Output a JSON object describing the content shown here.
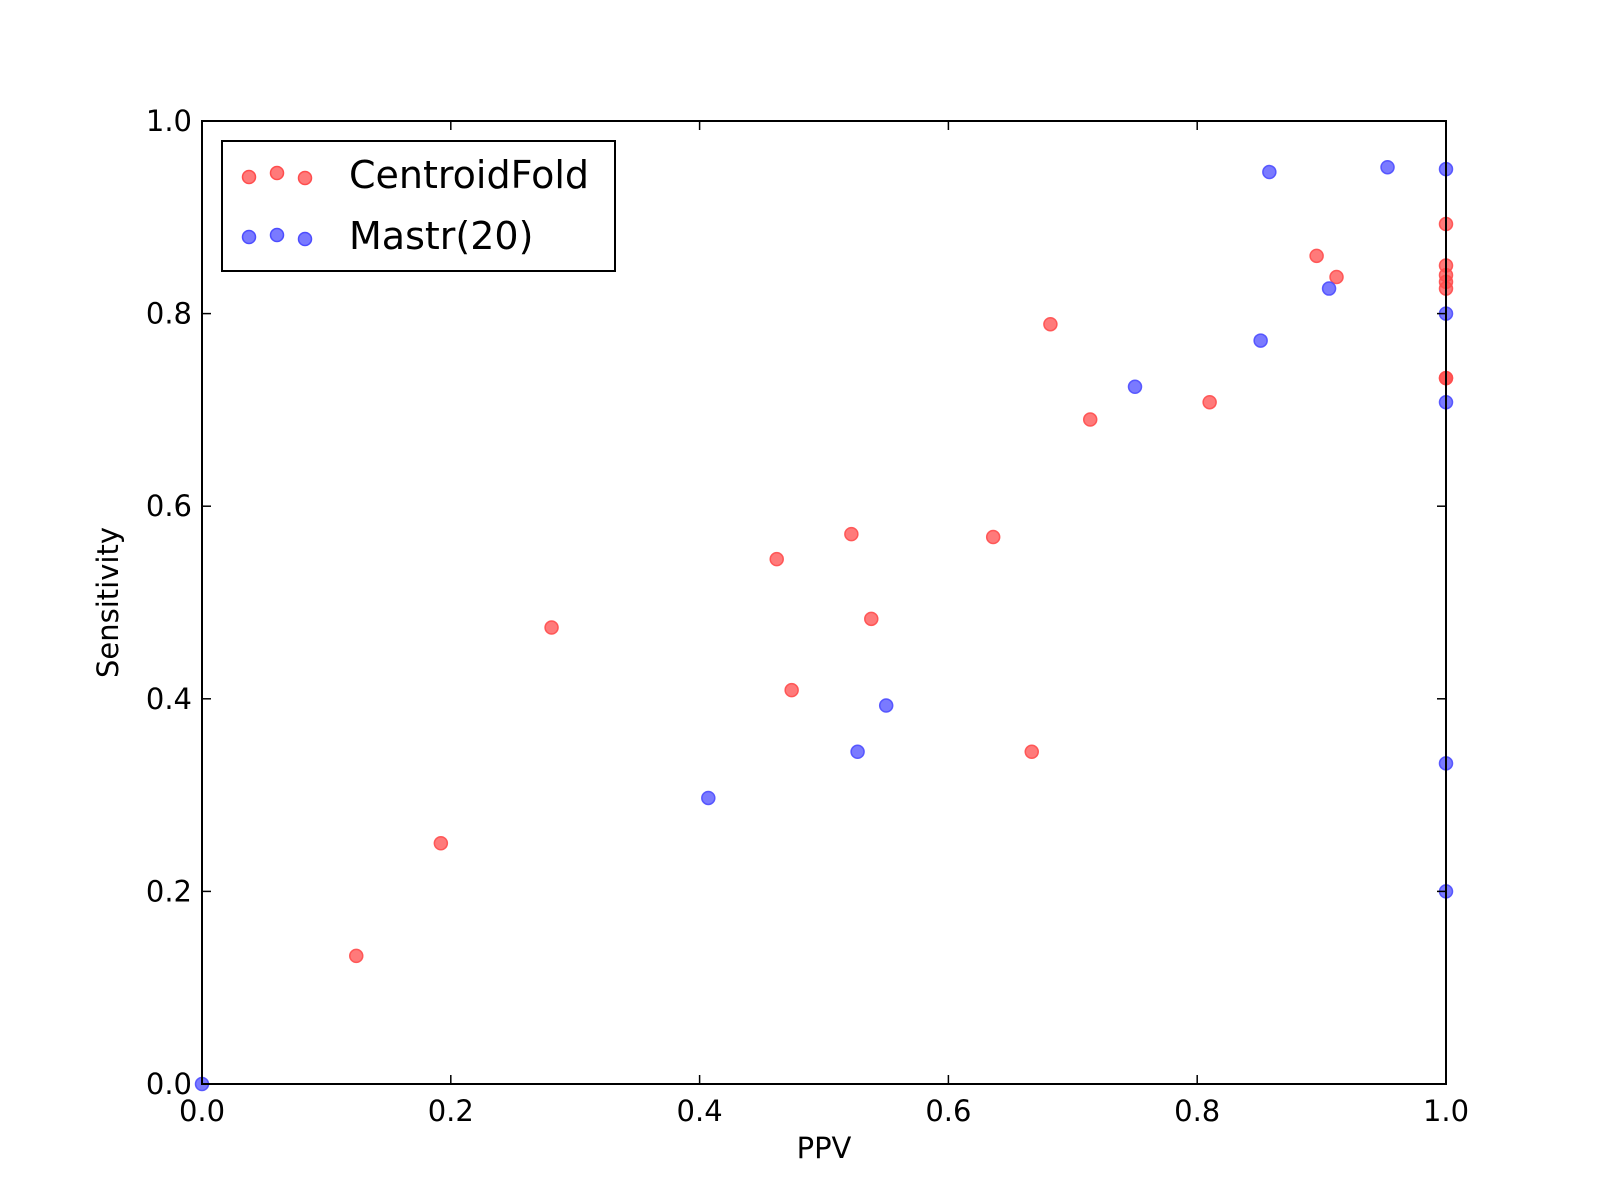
{
  "chart_data": {
    "type": "scatter",
    "title": "",
    "xlabel": "PPV",
    "ylabel": "Sensitivity",
    "xlim": [
      0.0,
      1.0
    ],
    "ylim": [
      0.0,
      1.0
    ],
    "x_ticks": [
      "0.0",
      "0.2",
      "0.4",
      "0.6",
      "0.8",
      "1.0"
    ],
    "y_ticks": [
      "0.0",
      "0.2",
      "0.4",
      "0.6",
      "0.8",
      "1.0"
    ],
    "grid": false,
    "legend_position": "upper-left",
    "series": [
      {
        "name": "CentroidFold",
        "color": "#ff4d4d",
        "points": [
          {
            "x": 0.124,
            "y": 0.133
          },
          {
            "x": 0.192,
            "y": 0.25
          },
          {
            "x": 0.281,
            "y": 0.474
          },
          {
            "x": 0.462,
            "y": 0.545
          },
          {
            "x": 0.474,
            "y": 0.409
          },
          {
            "x": 0.522,
            "y": 0.571
          },
          {
            "x": 0.538,
            "y": 0.483
          },
          {
            "x": 0.636,
            "y": 0.568
          },
          {
            "x": 0.667,
            "y": 0.345
          },
          {
            "x": 0.682,
            "y": 0.789
          },
          {
            "x": 0.714,
            "y": 0.69
          },
          {
            "x": 0.81,
            "y": 0.708
          },
          {
            "x": 0.896,
            "y": 0.86
          },
          {
            "x": 0.912,
            "y": 0.838
          },
          {
            "x": 1.0,
            "y": 0.893
          },
          {
            "x": 1.0,
            "y": 0.85
          },
          {
            "x": 1.0,
            "y": 0.84
          },
          {
            "x": 1.0,
            "y": 0.833
          },
          {
            "x": 1.0,
            "y": 0.826
          },
          {
            "x": 1.0,
            "y": 0.733
          },
          {
            "x": 1.0,
            "y": 0.733
          }
        ]
      },
      {
        "name": "Mastr(20)",
        "color": "#4d4dff",
        "points": [
          {
            "x": 0.0,
            "y": 0.0
          },
          {
            "x": 0.407,
            "y": 0.297
          },
          {
            "x": 0.527,
            "y": 0.345
          },
          {
            "x": 0.55,
            "y": 0.393
          },
          {
            "x": 0.75,
            "y": 0.724
          },
          {
            "x": 0.851,
            "y": 0.772
          },
          {
            "x": 0.858,
            "y": 0.947
          },
          {
            "x": 0.906,
            "y": 0.826
          },
          {
            "x": 0.953,
            "y": 0.952
          },
          {
            "x": 1.0,
            "y": 0.95
          },
          {
            "x": 1.0,
            "y": 0.8
          },
          {
            "x": 1.0,
            "y": 0.708
          },
          {
            "x": 1.0,
            "y": 0.333
          },
          {
            "x": 1.0,
            "y": 0.2
          }
        ]
      }
    ]
  }
}
